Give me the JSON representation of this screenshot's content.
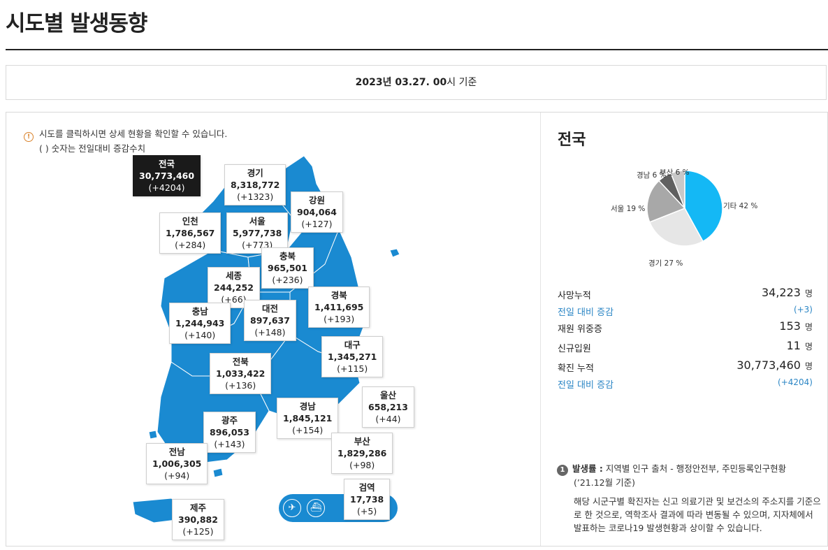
{
  "page": {
    "title": "시도별 발생동향"
  },
  "date": {
    "prefix": "2023년 03.27. 00",
    "suffix": "시 기준"
  },
  "notice": {
    "line1": "시도를 클릭하시면 상세 현황을 확인할 수 있습니다.",
    "line2": "( ) 숫자는 전일대비 증감수치"
  },
  "regions": {
    "national": {
      "name": "전국",
      "value": "30,773,460",
      "delta": "(+4204)"
    },
    "gyeonggi": {
      "name": "경기",
      "value": "8,318,772",
      "delta": "(+1323)"
    },
    "gangwon": {
      "name": "강원",
      "value": "904,064",
      "delta": "(+127)"
    },
    "incheon": {
      "name": "인천",
      "value": "1,786,567",
      "delta": "(+284)"
    },
    "seoul": {
      "name": "서울",
      "value": "5,977,738",
      "delta": "(+773)"
    },
    "chungbuk": {
      "name": "충북",
      "value": "965,501",
      "delta": "(+236)"
    },
    "sejong": {
      "name": "세종",
      "value": "244,252",
      "delta": "(+66)"
    },
    "gyeongbuk": {
      "name": "경북",
      "value": "1,411,695",
      "delta": "(+193)"
    },
    "chungnam": {
      "name": "충남",
      "value": "1,244,943",
      "delta": "(+140)"
    },
    "daejeon": {
      "name": "대전",
      "value": "897,637",
      "delta": "(+148)"
    },
    "daegu": {
      "name": "대구",
      "value": "1,345,271",
      "delta": "(+115)"
    },
    "jeonbuk": {
      "name": "전북",
      "value": "1,033,422",
      "delta": "(+136)"
    },
    "ulsan": {
      "name": "울산",
      "value": "658,213",
      "delta": "(+44)"
    },
    "gyeongnam": {
      "name": "경남",
      "value": "1,845,121",
      "delta": "(+154)"
    },
    "gwangju": {
      "name": "광주",
      "value": "896,053",
      "delta": "(+143)"
    },
    "busan": {
      "name": "부산",
      "value": "1,829,286",
      "delta": "(+98)"
    },
    "jeonnam": {
      "name": "전남",
      "value": "1,006,305",
      "delta": "(+94)"
    },
    "quarantine": {
      "name": "검역",
      "value": "17,738",
      "delta": "(+5)"
    },
    "jeju": {
      "name": "제주",
      "value": "390,882",
      "delta": "(+125)"
    }
  },
  "quarantine_icons": [
    "airplane-icon",
    "ship-icon"
  ],
  "right": {
    "title": "전국",
    "pie_labels": {
      "etc": "기타 42 %",
      "gyeonggi": "경기 27 %",
      "seoul": "서울 19 %",
      "gyeongnam": "경남 6 %",
      "busan": "부산 6 %"
    },
    "stats": {
      "deaths_label": "사망누적",
      "deaths_value": "34,223",
      "unit": "명",
      "deaths_delta_label": "전일 대비 증감",
      "deaths_delta": "(+3)",
      "critical_label": "재원 위중증",
      "critical_value": "153",
      "imported_label": "신규입원",
      "imported_value": "11",
      "confirmed_label": "확진 누적",
      "confirmed_value": "30,773,460",
      "confirmed_delta_label": "전일 대비 증감",
      "confirmed_delta": "(+4204)"
    },
    "note": {
      "number": "1",
      "bold": "발생률 :",
      "text": " 지역별 인구 출처 - 행정안전부, 주민등록인구현황",
      "sub": "(’21.12월 기준)",
      "body": "해당 시군구별 확진자는 신고 의료기관 및 보건소의 주소지를 기준으로 한 것으로, 역학조사 결과에 따라 변동될 수 있으며, 지자체에서 발표하는 코로나19 발생현황과 상이할 수 있습니다."
    }
  },
  "colors": {
    "map_fill": "#1a8ad1",
    "pie_etc": "#14b8f5",
    "pie_gyeonggi": "#e6e6e6",
    "pie_seoul": "#a8a8a8",
    "pie_gyeongnam": "#606060",
    "pie_busan": "#c8c8c8",
    "accent_blue": "#2b86c5"
  },
  "chart_data": {
    "type": "pie",
    "categories": [
      "기타",
      "경기",
      "서울",
      "경남",
      "부산"
    ],
    "values": [
      42,
      27,
      19,
      6,
      6
    ]
  }
}
